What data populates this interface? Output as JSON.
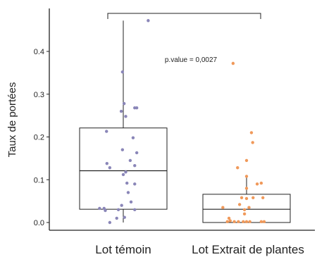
{
  "chart_data": {
    "type": "box",
    "ylabel": "Taux de portées",
    "xlabel": "",
    "ylim": [
      -0.02,
      0.5
    ],
    "yticks": [
      0.0,
      0.1,
      0.2,
      0.3,
      0.4
    ],
    "ytick_labels": [
      "0.0",
      "0.1",
      "0.2",
      "0.3",
      "0.4"
    ],
    "grid": false,
    "annotation": "p.value = 0,0027",
    "colors": {
      "group1_points": "#8a86b8",
      "group2_points": "#f0995a",
      "axis": "#222222"
    },
    "groups": [
      {
        "name": "Lot témoin",
        "box": {
          "min": 0.0,
          "q1": 0.031,
          "median": 0.121,
          "q3": 0.221,
          "max": 0.472
        },
        "points": [
          {
            "jitter": 0.61,
            "y": 0.472
          },
          {
            "jitter": -0.02,
            "y": 0.352
          },
          {
            "jitter": 0.02,
            "y": 0.278
          },
          {
            "jitter": 0.28,
            "y": 0.268
          },
          {
            "jitter": 0.33,
            "y": 0.268
          },
          {
            "jitter": -0.05,
            "y": 0.26
          },
          {
            "jitter": 0.06,
            "y": 0.248
          },
          {
            "jitter": -0.41,
            "y": 0.213
          },
          {
            "jitter": 0.24,
            "y": 0.198
          },
          {
            "jitter": -0.02,
            "y": 0.17
          },
          {
            "jitter": 0.33,
            "y": 0.163
          },
          {
            "jitter": 0.17,
            "y": 0.145
          },
          {
            "jitter": -0.4,
            "y": 0.138
          },
          {
            "jitter": 0.28,
            "y": 0.133
          },
          {
            "jitter": -0.33,
            "y": 0.128
          },
          {
            "jitter": 0.06,
            "y": 0.118
          },
          {
            "jitter": 0.0,
            "y": 0.112
          },
          {
            "jitter": 0.09,
            "y": 0.092
          },
          {
            "jitter": 0.28,
            "y": 0.09
          },
          {
            "jitter": 0.12,
            "y": 0.07
          },
          {
            "jitter": 0.19,
            "y": 0.048
          },
          {
            "jitter": -0.04,
            "y": 0.04
          },
          {
            "jitter": -0.58,
            "y": 0.033
          },
          {
            "jitter": -0.47,
            "y": 0.033
          },
          {
            "jitter": -0.44,
            "y": 0.028
          },
          {
            "jitter": -0.12,
            "y": 0.03
          },
          {
            "jitter": 0.28,
            "y": 0.03
          },
          {
            "jitter": -0.16,
            "y": 0.01
          },
          {
            "jitter": 0.03,
            "y": 0.012
          },
          {
            "jitter": -0.33,
            "y": 0.0
          }
        ]
      },
      {
        "name": "Lot Extrait de plantes",
        "box": {
          "min": 0.0,
          "q1": 0.0,
          "median": 0.031,
          "q3": 0.066,
          "max": 0.11
        },
        "points": [
          {
            "jitter": -0.33,
            "y": 0.372
          },
          {
            "jitter": 0.12,
            "y": 0.21
          },
          {
            "jitter": 0.15,
            "y": 0.187
          },
          {
            "jitter": 0.0,
            "y": 0.145
          },
          {
            "jitter": -0.22,
            "y": 0.128
          },
          {
            "jitter": 0.0,
            "y": 0.108
          },
          {
            "jitter": 0.36,
            "y": 0.092
          },
          {
            "jitter": 0.26,
            "y": 0.09
          },
          {
            "jitter": 0.0,
            "y": 0.08
          },
          {
            "jitter": -0.12,
            "y": 0.058
          },
          {
            "jitter": 0.16,
            "y": 0.058
          },
          {
            "jitter": 0.0,
            "y": 0.056
          },
          {
            "jitter": 0.4,
            "y": 0.058
          },
          {
            "jitter": -0.17,
            "y": 0.042
          },
          {
            "jitter": -0.58,
            "y": 0.035
          },
          {
            "jitter": -0.05,
            "y": 0.03
          },
          {
            "jitter": 0.06,
            "y": 0.035
          },
          {
            "jitter": -0.05,
            "y": 0.02
          },
          {
            "jitter": -0.43,
            "y": 0.01
          },
          {
            "jitter": -0.4,
            "y": 0.004
          },
          {
            "jitter": -0.47,
            "y": 0.002
          },
          {
            "jitter": -0.3,
            "y": 0.002
          },
          {
            "jitter": -0.2,
            "y": 0.002
          },
          {
            "jitter": -0.08,
            "y": 0.002
          },
          {
            "jitter": 0.0,
            "y": 0.002
          },
          {
            "jitter": 0.08,
            "y": 0.002
          },
          {
            "jitter": 0.36,
            "y": 0.002
          },
          {
            "jitter": 0.43,
            "y": 0.002
          }
        ]
      }
    ]
  }
}
